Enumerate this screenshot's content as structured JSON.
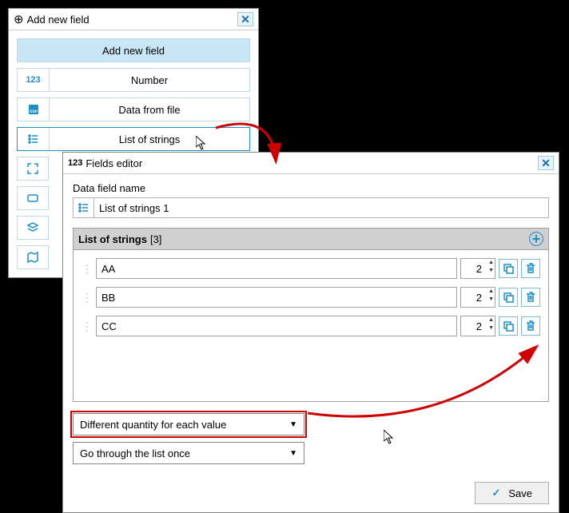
{
  "win1": {
    "title": "Add new field",
    "buttons": {
      "add": "Add new field",
      "number": "Number",
      "datafile": "Data from file",
      "liststrings": "List of strings"
    }
  },
  "win2": {
    "title": "Fields editor",
    "name_label": "Data field name",
    "name_value": "List of strings 1",
    "section_title": "List of strings",
    "section_count": "[3]",
    "rows": [
      {
        "val": "AA",
        "qty": "2"
      },
      {
        "val": "BB",
        "qty": "2"
      },
      {
        "val": "CC",
        "qty": "2"
      }
    ],
    "select1": "Different quantity for each value",
    "select2": "Go through the list once",
    "save": "Save"
  }
}
